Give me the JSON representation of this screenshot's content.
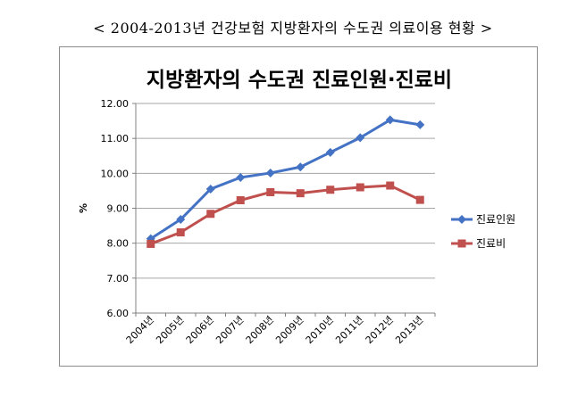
{
  "page_caption": "< 2004-2013년 건강보험 지방환자의 수도권 의료이용 현황 >",
  "chart_data": {
    "type": "line",
    "title": "지방환자의 수도권 진료인원·진료비",
    "xlabel": "",
    "ylabel": "%",
    "categories": [
      "2004년",
      "2005년",
      "2006년",
      "2007년",
      "2008년",
      "2009년",
      "2010년",
      "2011년",
      "2012년",
      "2013년"
    ],
    "ylim": [
      6.0,
      12.0
    ],
    "yticks": [
      "6.00",
      "7.00",
      "8.00",
      "9.00",
      "10.00",
      "11.00",
      "12.00"
    ],
    "grid": true,
    "legend_position": "right",
    "series": [
      {
        "name": "진료인원",
        "color": "#4472c4",
        "marker": "diamond",
        "values": [
          8.13,
          8.68,
          9.55,
          9.88,
          10.01,
          10.18,
          10.6,
          11.02,
          11.53,
          11.39
        ]
      },
      {
        "name": "진료비",
        "color": "#c0504d",
        "marker": "square",
        "values": [
          7.98,
          8.31,
          8.84,
          9.23,
          9.46,
          9.43,
          9.53,
          9.6,
          9.65,
          9.24
        ]
      }
    ]
  }
}
